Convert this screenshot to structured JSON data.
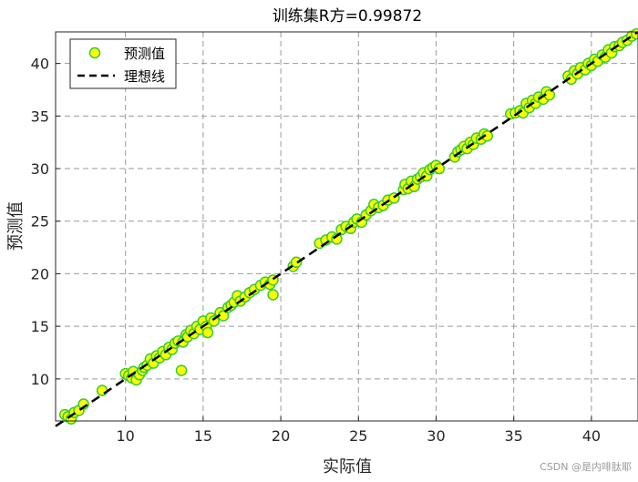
{
  "chart_data": {
    "type": "scatter",
    "title": "训练集R方=0.99872",
    "xlabel": "实际值",
    "ylabel": "预测值",
    "xlim": [
      5.5,
      43
    ],
    "ylim": [
      6,
      43
    ],
    "xticks": [
      10,
      15,
      20,
      25,
      30,
      35,
      40
    ],
    "yticks": [
      10,
      15,
      20,
      25,
      30,
      35,
      40
    ],
    "grid": true,
    "legend": {
      "position": "top-left",
      "entries": [
        {
          "label": "预测值",
          "marker": "circle",
          "face": "#ffff00",
          "edge": "#33cc33"
        },
        {
          "label": "理想线",
          "line": "dashed",
          "color": "#000000"
        }
      ]
    },
    "series": [
      {
        "name": "预测值",
        "face_color": "#ffff00",
        "edge_color": "#33cc33",
        "points": [
          [
            6.1,
            6.6
          ],
          [
            6.3,
            6.4
          ],
          [
            6.5,
            6.2
          ],
          [
            6.7,
            6.8
          ],
          [
            7.0,
            7.0
          ],
          [
            7.3,
            7.6
          ],
          [
            8.5,
            8.9
          ],
          [
            10.0,
            10.5
          ],
          [
            10.2,
            10.3
          ],
          [
            10.4,
            10.1
          ],
          [
            10.5,
            10.7
          ],
          [
            10.7,
            9.9
          ],
          [
            10.9,
            10.4
          ],
          [
            11.1,
            10.8
          ],
          [
            11.2,
            11.1
          ],
          [
            11.4,
            11.3
          ],
          [
            11.6,
            11.9
          ],
          [
            11.8,
            11.5
          ],
          [
            12.0,
            12.2
          ],
          [
            12.2,
            12.0
          ],
          [
            12.4,
            12.6
          ],
          [
            12.6,
            12.3
          ],
          [
            12.8,
            13.0
          ],
          [
            13.0,
            12.8
          ],
          [
            13.2,
            13.4
          ],
          [
            13.4,
            13.6
          ],
          [
            13.6,
            10.8
          ],
          [
            13.7,
            13.5
          ],
          [
            13.9,
            14.2
          ],
          [
            14.0,
            14.0
          ],
          [
            14.2,
            14.6
          ],
          [
            14.4,
            14.3
          ],
          [
            14.6,
            15.0
          ],
          [
            14.8,
            14.7
          ],
          [
            15.0,
            15.5
          ],
          [
            15.2,
            15.0
          ],
          [
            15.3,
            14.4
          ],
          [
            15.5,
            15.8
          ],
          [
            15.7,
            15.5
          ],
          [
            16.1,
            16.3
          ],
          [
            16.3,
            16.0
          ],
          [
            16.6,
            16.8
          ],
          [
            16.8,
            17.0
          ],
          [
            17.0,
            17.3
          ],
          [
            17.2,
            17.9
          ],
          [
            17.4,
            17.4
          ],
          [
            17.7,
            17.8
          ],
          [
            18.0,
            18.2
          ],
          [
            18.3,
            18.5
          ],
          [
            18.7,
            18.9
          ],
          [
            19.0,
            19.2
          ],
          [
            19.3,
            19.0
          ],
          [
            19.5,
            18.0
          ],
          [
            19.5,
            19.4
          ],
          [
            20.8,
            20.7
          ],
          [
            21.0,
            21.1
          ],
          [
            22.5,
            22.9
          ],
          [
            22.9,
            23.2
          ],
          [
            23.3,
            23.5
          ],
          [
            23.6,
            23.3
          ],
          [
            23.9,
            24.2
          ],
          [
            24.2,
            24.5
          ],
          [
            24.5,
            24.3
          ],
          [
            24.7,
            24.9
          ],
          [
            24.9,
            25.2
          ],
          [
            25.2,
            24.9
          ],
          [
            25.5,
            25.6
          ],
          [
            25.8,
            26.0
          ],
          [
            26.0,
            26.6
          ],
          [
            26.3,
            26.3
          ],
          [
            26.6,
            26.5
          ],
          [
            26.9,
            27.0
          ],
          [
            27.3,
            27.2
          ],
          [
            27.9,
            28.0
          ],
          [
            28.0,
            28.5
          ],
          [
            28.2,
            28.1
          ],
          [
            28.4,
            28.8
          ],
          [
            28.6,
            28.3
          ],
          [
            28.8,
            29.0
          ],
          [
            29.0,
            29.2
          ],
          [
            29.2,
            29.6
          ],
          [
            29.4,
            29.3
          ],
          [
            29.6,
            29.9
          ],
          [
            29.8,
            30.1
          ],
          [
            30.0,
            30.3
          ],
          [
            30.2,
            30.0
          ],
          [
            31.2,
            31.1
          ],
          [
            31.4,
            31.6
          ],
          [
            31.6,
            31.8
          ],
          [
            31.8,
            32.1
          ],
          [
            32.0,
            31.9
          ],
          [
            32.2,
            32.5
          ],
          [
            32.4,
            32.3
          ],
          [
            32.6,
            32.9
          ],
          [
            32.9,
            32.8
          ],
          [
            33.1,
            33.3
          ],
          [
            33.3,
            33.1
          ],
          [
            34.8,
            35.2
          ],
          [
            35.1,
            35.3
          ],
          [
            35.4,
            35.5
          ],
          [
            35.6,
            35.3
          ],
          [
            35.8,
            36.2
          ],
          [
            36.0,
            35.8
          ],
          [
            36.2,
            36.5
          ],
          [
            36.4,
            36.2
          ],
          [
            36.6,
            36.8
          ],
          [
            36.9,
            36.6
          ],
          [
            37.1,
            37.3
          ],
          [
            37.3,
            37.0
          ],
          [
            38.5,
            38.8
          ],
          [
            38.7,
            38.5
          ],
          [
            38.9,
            39.3
          ],
          [
            39.1,
            39.0
          ],
          [
            39.3,
            39.6
          ],
          [
            39.6,
            39.4
          ],
          [
            39.8,
            40.0
          ],
          [
            40.0,
            39.8
          ],
          [
            40.2,
            40.4
          ],
          [
            40.4,
            40.2
          ],
          [
            40.7,
            40.8
          ],
          [
            40.9,
            40.6
          ],
          [
            41.1,
            41.3
          ],
          [
            41.3,
            41.0
          ],
          [
            41.5,
            41.6
          ],
          [
            41.8,
            41.7
          ],
          [
            42.0,
            42.0
          ],
          [
            42.3,
            42.2
          ],
          [
            42.6,
            42.6
          ],
          [
            42.9,
            42.8
          ]
        ]
      },
      {
        "name": "理想线",
        "line_style": "dashed",
        "color": "#000000",
        "points": [
          [
            5.5,
            5.5
          ],
          [
            43,
            43
          ]
        ]
      }
    ],
    "watermark": "CSDN @是内啡肽耶"
  }
}
